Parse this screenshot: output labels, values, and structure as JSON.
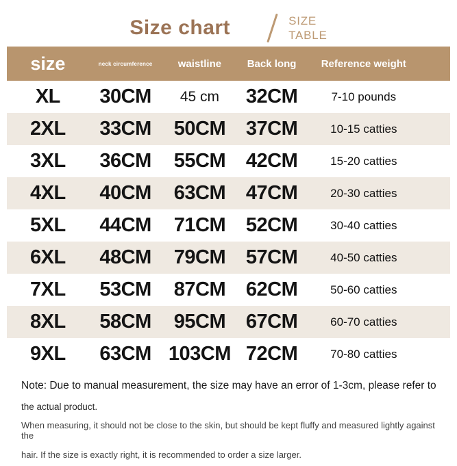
{
  "title": {
    "main": "Size chart",
    "tag_line1": "SIZE",
    "tag_line2": "TABLE"
  },
  "colors": {
    "title_main": "#9b7355",
    "title_tag": "#bd9a74",
    "header_bg": "#b8956e",
    "header_text": "#ffffff",
    "row_alt_bg": "#efe9e1",
    "row_bg": "#ffffff",
    "cell_text": "#141414"
  },
  "table": {
    "headers": [
      {
        "label": "size"
      },
      {
        "label": "neck circumference"
      },
      {
        "label": "waistline"
      },
      {
        "label": "Back long"
      },
      {
        "label": "Reference weight"
      }
    ],
    "rows": [
      {
        "size": "XL",
        "neck": "30CM",
        "waist": "45 cm",
        "back": "32CM",
        "weight": "7-10 pounds"
      },
      {
        "size": "2XL",
        "neck": "33CM",
        "waist": "50CM",
        "back": "37CM",
        "weight": "10-15 catties"
      },
      {
        "size": "3XL",
        "neck": "36CM",
        "waist": "55CM",
        "back": "42CM",
        "weight": "15-20 catties"
      },
      {
        "size": "4XL",
        "neck": "40CM",
        "waist": "63CM",
        "back": "47CM",
        "weight": "20-30 catties"
      },
      {
        "size": "5XL",
        "neck": "44CM",
        "waist": "71CM",
        "back": "52CM",
        "weight": "30-40 catties"
      },
      {
        "size": "6XL",
        "neck": "48CM",
        "waist": "79CM",
        "back": "57CM",
        "weight": "40-50 catties"
      },
      {
        "size": "7XL",
        "neck": "53CM",
        "waist": "87CM",
        "back": "62CM",
        "weight": "50-60 catties"
      },
      {
        "size": "8XL",
        "neck": "58CM",
        "waist": "95CM",
        "back": "67CM",
        "weight": "60-70 catties"
      },
      {
        "size": "9XL",
        "neck": "63CM",
        "waist": "103CM",
        "back": "72CM",
        "weight": "70-80 catties"
      }
    ]
  },
  "notes": {
    "line1": "Note: Due to manual measurement, the size may have an error of 1-3cm, please refer to",
    "line2": "the actual product.",
    "line3": "When measuring, it should not be close to the skin, but should be kept fluffy and measured lightly against the",
    "line4": "hair. If the size is exactly right, it is recommended to order a size larger."
  }
}
